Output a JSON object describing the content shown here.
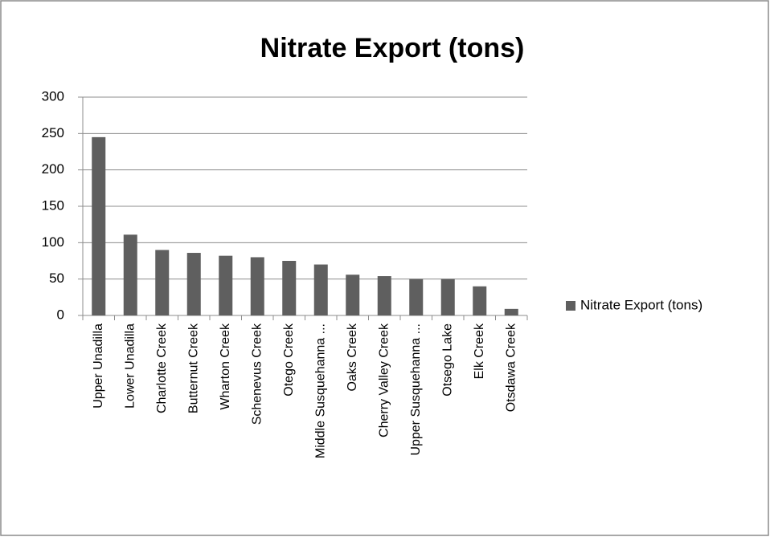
{
  "chart_data": {
    "type": "bar",
    "title": "Nitrate Export (tons)",
    "categories": [
      "Upper Unadilla",
      "Lower Unadilla",
      "Charlotte Creek",
      "Butternut Creek",
      "Wharton Creek",
      "Schenevus Creek",
      "Otego Creek",
      "Middle Susquehanna ...",
      "Oaks Creek",
      "Cherry Valley Creek",
      "Upper Susquehanna ...",
      "Otsego Lake",
      "Elk Creek",
      "Otsdawa Creek"
    ],
    "series": [
      {
        "name": "Nitrate Export (tons)",
        "color": "#5f5f5f",
        "values": [
          245,
          111,
          90,
          86,
          82,
          80,
          75,
          70,
          56,
          54,
          50,
          50,
          40,
          9
        ]
      }
    ],
    "ylim": [
      0,
      300
    ],
    "yticks": [
      0,
      50,
      100,
      150,
      200,
      250,
      300
    ],
    "grid": true,
    "legend": "right"
  }
}
